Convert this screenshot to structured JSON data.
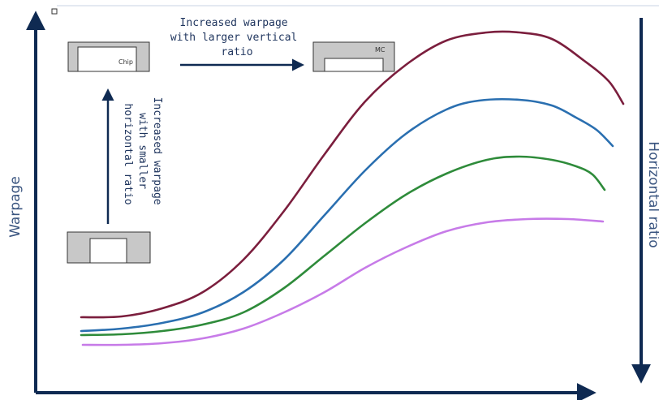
{
  "axes": {
    "y_label": "Warpage",
    "right_label": "Horizontal ratio"
  },
  "annotations": {
    "vertical_ratio_note": [
      "Increased warpage",
      "with larger vertical",
      "ratio"
    ],
    "horizontal_ratio_note": [
      "Increased warpage",
      "with smaller",
      "horizontal ratio"
    ]
  },
  "packages": {
    "chip_label": "Chip",
    "mc_label": "MC"
  },
  "chart_data": {
    "type": "line",
    "series": [
      {
        "color": "#7b1e3d",
        "points": [
          [
            100,
            391
          ],
          [
            150,
            390
          ],
          [
            200,
            380
          ],
          [
            250,
            360
          ],
          [
            300,
            320
          ],
          [
            350,
            260
          ],
          [
            400,
            190
          ],
          [
            450,
            125
          ],
          [
            500,
            80
          ],
          [
            550,
            50
          ],
          [
            600,
            40
          ],
          [
            640,
            40
          ],
          [
            680,
            48
          ],
          [
            720,
            75
          ],
          [
            750,
            100
          ],
          [
            768,
            128
          ]
        ]
      },
      {
        "color": "#2a6fb0",
        "points": [
          [
            100,
            408
          ],
          [
            150,
            405
          ],
          [
            200,
            398
          ],
          [
            250,
            385
          ],
          [
            300,
            360
          ],
          [
            350,
            320
          ],
          [
            400,
            265
          ],
          [
            450,
            210
          ],
          [
            500,
            165
          ],
          [
            550,
            135
          ],
          [
            590,
            124
          ],
          [
            640,
            123
          ],
          [
            680,
            130
          ],
          [
            710,
            145
          ],
          [
            735,
            160
          ],
          [
            755,
            180
          ]
        ]
      },
      {
        "color": "#2e8b3a",
        "points": [
          [
            100,
            413
          ],
          [
            150,
            412
          ],
          [
            200,
            408
          ],
          [
            250,
            400
          ],
          [
            300,
            385
          ],
          [
            350,
            355
          ],
          [
            400,
            315
          ],
          [
            450,
            275
          ],
          [
            500,
            240
          ],
          [
            550,
            214
          ],
          [
            600,
            197
          ],
          [
            640,
            193
          ],
          [
            680,
            197
          ],
          [
            710,
            205
          ],
          [
            730,
            215
          ],
          [
            745,
            234
          ]
        ]
      },
      {
        "color": "#c77be8",
        "points": [
          [
            102,
            425
          ],
          [
            150,
            425
          ],
          [
            200,
            423
          ],
          [
            250,
            417
          ],
          [
            300,
            405
          ],
          [
            350,
            385
          ],
          [
            400,
            360
          ],
          [
            450,
            330
          ],
          [
            500,
            305
          ],
          [
            550,
            285
          ],
          [
            600,
            274
          ],
          [
            650,
            270
          ],
          [
            700,
            270
          ],
          [
            743,
            273
          ]
        ]
      }
    ]
  }
}
